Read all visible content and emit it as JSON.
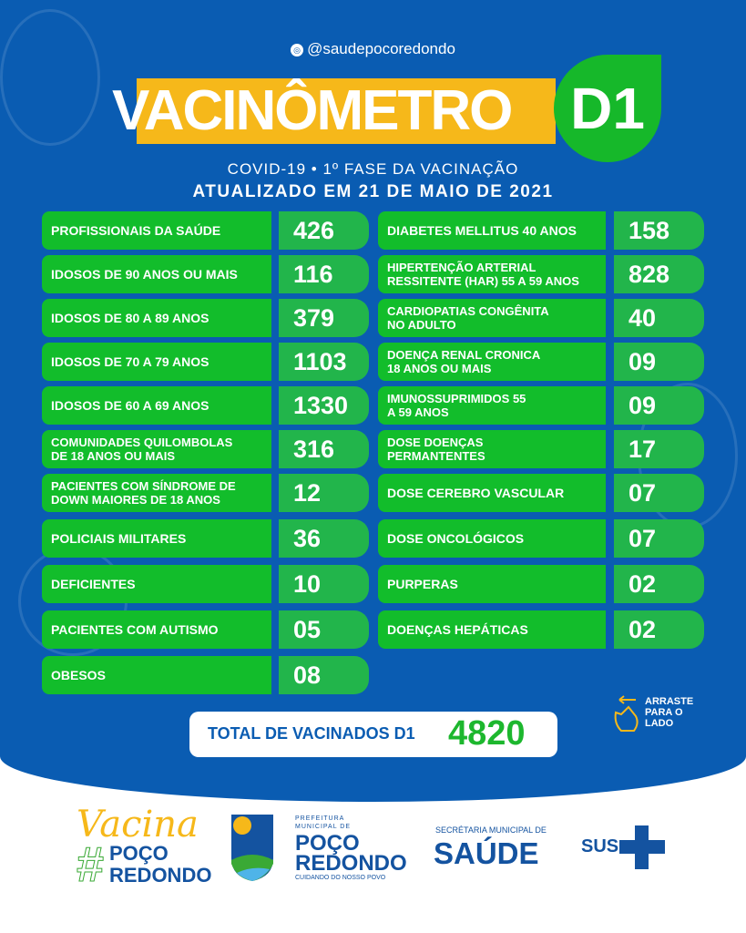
{
  "header": {
    "handle": "@saudepocoredondo",
    "title": "VACINÔMETRO",
    "badge": "D1",
    "subtitle": "COVID-19 •  1º FASE DA VACINAÇÃO",
    "updated": "ATUALIZADO EM 21 DE MAIO DE 2021"
  },
  "colors": {
    "background": "#0a5cb2",
    "label": "#12bd2b",
    "value": "#22b54b",
    "title_bar": "#f6b81a"
  },
  "left": [
    {
      "label": "PROFISSIONAIS DA SAÚDE",
      "value": "426"
    },
    {
      "label": "IDOSOS DE 90 ANOS OU MAIS",
      "value": "116"
    },
    {
      "label": "IDOSOS DE 80 A 89 ANOS",
      "value": "379"
    },
    {
      "label": "IDOSOS DE 70 A 79 ANOS",
      "value": "1103"
    },
    {
      "label": "IDOSOS DE 60 A 69 ANOS",
      "value": "1330"
    },
    {
      "label": "COMUNIDADES QUILOMBOLAS\nDE 18 ANOS OU MAIS",
      "value": "316"
    },
    {
      "label": "PACIENTES COM SÍNDROME DE\nDOWN MAIORES DE 18 ANOS",
      "value": "12"
    },
    {
      "label": "POLICIAIS MILITARES",
      "value": "36"
    },
    {
      "label": "DEFICIENTES",
      "value": "10"
    },
    {
      "label": "PACIENTES COM AUTISMO",
      "value": "05"
    },
    {
      "label": "OBESOS",
      "value": "08"
    }
  ],
  "right": [
    {
      "label": "DIABETES MELLITUS 40 ANOS",
      "value": "158"
    },
    {
      "label": "HIPERTENÇÃO ARTERIAL\nRESSITENTE (HAR) 55 A 59 ANOS",
      "value": "828"
    },
    {
      "label": "CARDIOPATIAS CONGÊNITA\nNO ADULTO",
      "value": "40"
    },
    {
      "label": "DOENÇA RENAL CRONICA\n18 ANOS OU MAIS",
      "value": "09"
    },
    {
      "label": "IMUNOSSUPRIMIDOS 55\nA 59 ANOS",
      "value": "09"
    },
    {
      "label": "DOSE DOENÇAS\nPERMANTENTES",
      "value": "17"
    },
    {
      "label": "DOSE CEREBRO VASCULAR",
      "value": "07"
    },
    {
      "label": "DOSE ONCOLÓGICOS",
      "value": "07"
    },
    {
      "label": "PURPERAS",
      "value": "02"
    },
    {
      "label": "DOENÇAS HEPÁTICAS",
      "value": "02"
    }
  ],
  "total": {
    "label": "TOTAL DE VACINADOS D1",
    "value": "4820"
  },
  "swipe": {
    "text": "ARRASTE PARA O LADO"
  },
  "footer": {
    "vacina": {
      "script": "Vacina",
      "hashtag": "#",
      "line1": "POÇO",
      "line2": "REDONDO"
    },
    "prefeitura": {
      "top": "PREFEITURA MUNICIPAL DE",
      "line1": "POÇO",
      "line2": "REDONDO",
      "tagline": "CUIDANDO DO NOSSO POVO"
    },
    "secretaria": {
      "top": "SECRÉTARIA MUNICIPAL DE",
      "main": "SAÚDE"
    },
    "sus": "SUS"
  }
}
